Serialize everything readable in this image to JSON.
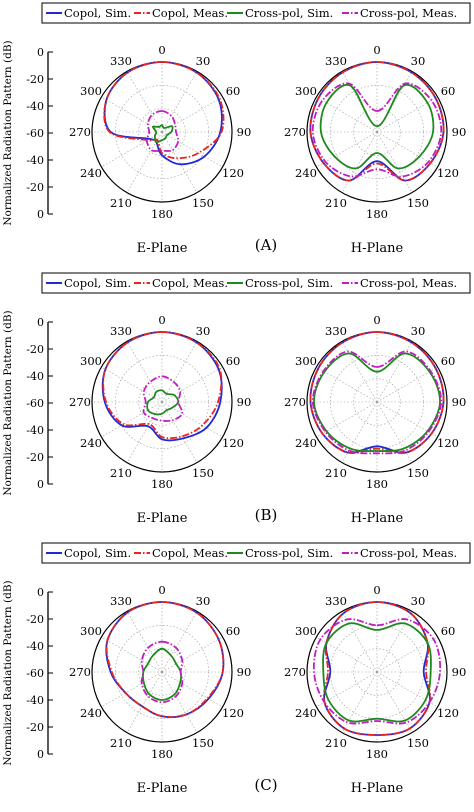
{
  "y_axis_label": "Normalized Radiation Pattern (dB)",
  "radial_ticks": [
    "0",
    "-20",
    "-40",
    "-60",
    "-40",
    "-20",
    "0"
  ],
  "angle_labels": [
    "0",
    "30",
    "60",
    "90",
    "120",
    "150",
    "180",
    "210",
    "240",
    "270",
    "300",
    "330"
  ],
  "legend": [
    {
      "label": "Copol, Sim.",
      "color": "#1f2bd6",
      "dash": "solid"
    },
    {
      "label": "Copol, Meas.",
      "color": "#e8251f",
      "dash": "dashdot"
    },
    {
      "label": "Cross-pol, Sim.",
      "color": "#1e8a1e",
      "dash": "solid"
    },
    {
      "label": "Cross-pol, Meas.",
      "color": "#c01ec0",
      "dash": "dashdot"
    }
  ],
  "panels": [
    {
      "tag": "(A)",
      "left_title": "E-Plane",
      "right_title": "H-Plane"
    },
    {
      "tag": "(B)",
      "left_title": "E-Plane",
      "right_title": "H-Plane"
    },
    {
      "tag": "(C)",
      "left_title": "E-Plane",
      "right_title": "H-Plane"
    }
  ],
  "chart_data": [
    {
      "type": "polar-line",
      "panel": "(A)",
      "plane": "E-Plane",
      "r_range": [
        -60,
        0
      ],
      "theta": [
        0,
        30,
        60,
        90,
        120,
        150,
        180,
        210,
        240,
        270,
        300,
        330
      ],
      "series": [
        {
          "name": "Copol, Sim.",
          "values": [
            0,
            -1,
            -4,
            -10,
            -18,
            -28,
            -40,
            -50,
            -48,
            -16,
            -5,
            -1
          ]
        },
        {
          "name": "Copol, Meas.",
          "values": [
            0,
            -1,
            -3,
            -9,
            -24,
            -34,
            -42,
            -52,
            -46,
            -15,
            -5,
            -1
          ]
        },
        {
          "name": "Cross-pol, Sim.",
          "values": [
            -54,
            -56,
            -50,
            -52,
            -55,
            -54,
            -53,
            -50,
            -53,
            -55,
            -51,
            -55
          ]
        },
        {
          "name": "Cross-pol, Meas.",
          "values": [
            -42,
            -44,
            -47,
            -48,
            -44,
            -42,
            -44,
            -42,
            -45,
            -49,
            -46,
            -43
          ]
        }
      ]
    },
    {
      "type": "polar-line",
      "panel": "(A)",
      "plane": "H-Plane",
      "r_range": [
        -60,
        0
      ],
      "theta": [
        0,
        30,
        60,
        90,
        120,
        150,
        180,
        210,
        240,
        270,
        300,
        330
      ],
      "series": [
        {
          "name": "Copol, Sim.",
          "values": [
            0,
            -1,
            -2,
            -3,
            -7,
            -12,
            -35,
            -12,
            -7,
            -3,
            -2,
            -1
          ]
        },
        {
          "name": "Copol, Meas.",
          "values": [
            0,
            -1,
            -2,
            -3,
            -7,
            -12,
            -33,
            -12,
            -7,
            -3,
            -2,
            -1
          ]
        },
        {
          "name": "Cross-pol, Sim.",
          "values": [
            -55,
            -14,
            -10,
            -12,
            -18,
            -24,
            -42,
            -24,
            -18,
            -12,
            -10,
            -14
          ]
        },
        {
          "name": "Cross-pol, Meas.",
          "values": [
            -42,
            -12,
            -6,
            -5,
            -9,
            -16,
            -28,
            -16,
            -9,
            -5,
            -6,
            -12
          ]
        }
      ]
    },
    {
      "type": "polar-line",
      "panel": "(B)",
      "plane": "E-Plane",
      "r_range": [
        -60,
        0
      ],
      "theta": [
        0,
        30,
        60,
        90,
        120,
        150,
        180,
        210,
        240,
        270,
        300,
        330
      ],
      "series": [
        {
          "name": "Copol, Sim.",
          "values": [
            0,
            -1,
            -4,
            -10,
            -16,
            -24,
            -28,
            -36,
            -20,
            -11,
            -4,
            -1
          ]
        },
        {
          "name": "Copol, Meas.",
          "values": [
            0,
            -1,
            -3,
            -12,
            -20,
            -26,
            -30,
            -38,
            -22,
            -12,
            -4,
            -1
          ]
        },
        {
          "name": "Cross-pol, Sim.",
          "values": [
            -50,
            -52,
            -48,
            -46,
            -50,
            -52,
            -50,
            -48,
            -46,
            -48,
            -52,
            -50
          ]
        },
        {
          "name": "Cross-pol, Meas.",
          "values": [
            -38,
            -40,
            -42,
            -46,
            -40,
            -42,
            -44,
            -44,
            -42,
            -46,
            -42,
            -40
          ]
        }
      ]
    },
    {
      "type": "polar-line",
      "panel": "(B)",
      "plane": "H-Plane",
      "r_range": [
        -60,
        0
      ],
      "theta": [
        0,
        30,
        60,
        90,
        120,
        150,
        180,
        210,
        240,
        270,
        300,
        330
      ],
      "series": [
        {
          "name": "Copol, Sim.",
          "values": [
            0,
            -1,
            -2,
            -3,
            -6,
            -10,
            -22,
            -10,
            -6,
            -3,
            -2,
            -1
          ]
        },
        {
          "name": "Copol, Meas.",
          "values": [
            0,
            -1,
            -2,
            -3,
            -6,
            -10,
            -20,
            -10,
            -6,
            -3,
            -2,
            -1
          ]
        },
        {
          "name": "Cross-pol, Sim.",
          "values": [
            -34,
            -12,
            -8,
            -6,
            -10,
            -14,
            -18,
            -14,
            -10,
            -6,
            -8,
            -12
          ]
        },
        {
          "name": "Cross-pol, Meas.",
          "values": [
            -30,
            -10,
            -7,
            -5,
            -9,
            -12,
            -16,
            -12,
            -9,
            -5,
            -7,
            -10
          ]
        }
      ]
    },
    {
      "type": "polar-line",
      "panel": "(C)",
      "plane": "E-Plane",
      "r_range": [
        -60,
        0
      ],
      "theta": [
        0,
        30,
        60,
        90,
        120,
        150,
        180,
        210,
        240,
        270,
        300,
        330
      ],
      "series": [
        {
          "name": "Copol, Sim.",
          "values": [
            0,
            -1,
            -4,
            -8,
            -14,
            -18,
            -22,
            -26,
            -24,
            -16,
            -6,
            -1
          ]
        },
        {
          "name": "Copol, Meas.",
          "values": [
            0,
            -1,
            -4,
            -8,
            -15,
            -18,
            -22,
            -26,
            -24,
            -17,
            -6,
            -1
          ]
        },
        {
          "name": "Cross-pol, Sim.",
          "values": [
            -40,
            -44,
            -46,
            -44,
            -42,
            -38,
            -36,
            -38,
            -42,
            -44,
            -46,
            -44
          ]
        },
        {
          "name": "Cross-pol, Meas.",
          "values": [
            -34,
            -36,
            -40,
            -44,
            -40,
            -36,
            -34,
            -36,
            -40,
            -44,
            -40,
            -36
          ]
        }
      ]
    },
    {
      "type": "polar-line",
      "panel": "(C)",
      "plane": "H-Plane",
      "r_range": [
        -60,
        0
      ],
      "theta": [
        0,
        30,
        60,
        90,
        120,
        150,
        180,
        210,
        240,
        270,
        300,
        330
      ],
      "series": [
        {
          "name": "Copol, Sim.",
          "values": [
            0,
            -2,
            -10,
            -20,
            -8,
            -4,
            -6,
            -4,
            -8,
            -20,
            -10,
            -2
          ]
        },
        {
          "name": "Copol, Meas.",
          "values": [
            0,
            -2,
            -10,
            -18,
            -8,
            -4,
            -6,
            -4,
            -8,
            -18,
            -10,
            -2
          ]
        },
        {
          "name": "Cross-pol, Sim.",
          "values": [
            -24,
            -12,
            -10,
            -14,
            -12,
            -12,
            -20,
            -12,
            -12,
            -14,
            -10,
            -12
          ]
        },
        {
          "name": "Cross-pol, Meas.",
          "values": [
            -20,
            -8,
            -4,
            -6,
            -8,
            -10,
            -18,
            -10,
            -8,
            -6,
            -4,
            -8
          ]
        }
      ]
    }
  ]
}
